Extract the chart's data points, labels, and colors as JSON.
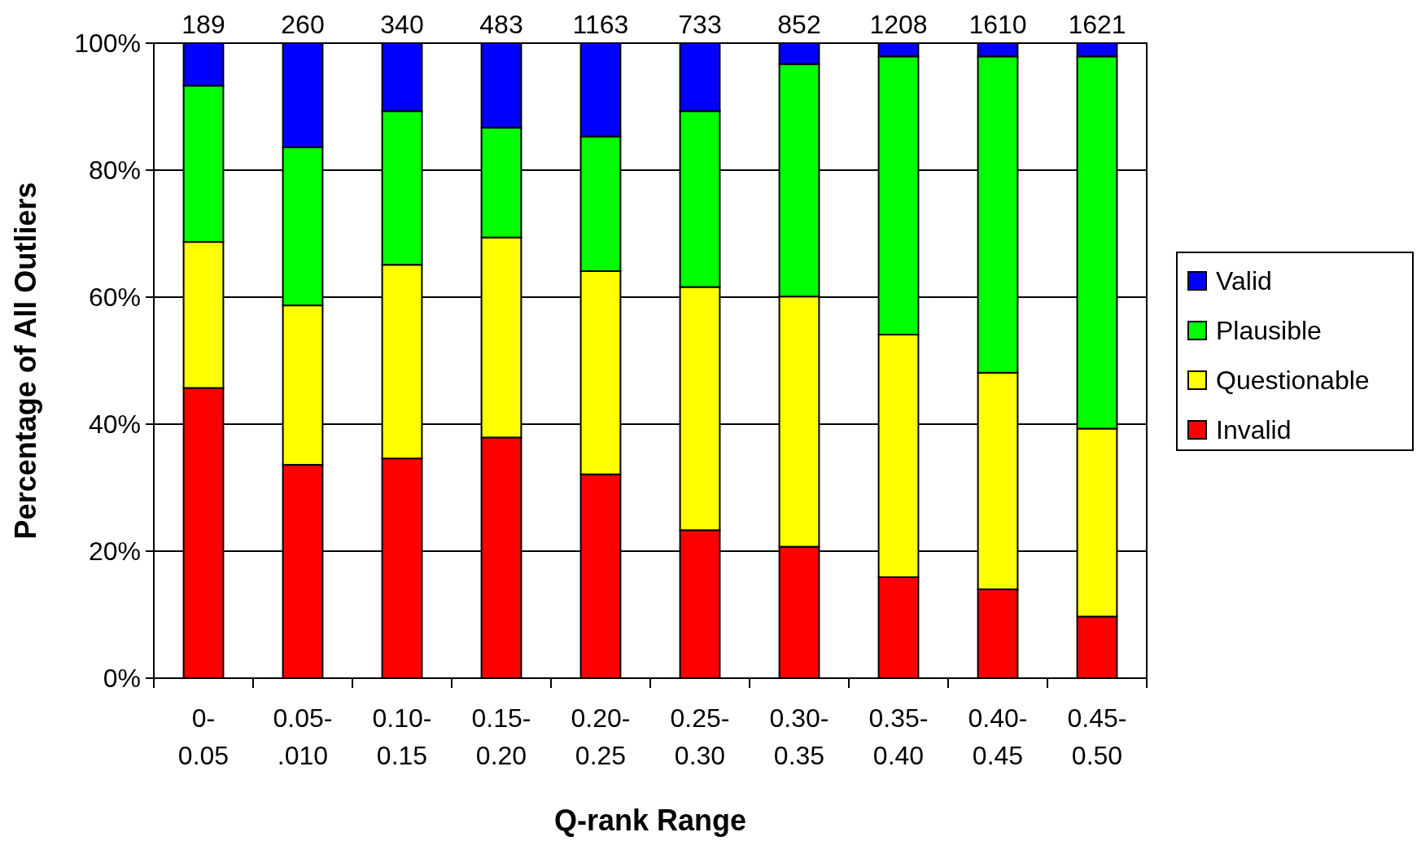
{
  "chart_data": {
    "type": "bar",
    "stacked": true,
    "xlabel": "Q-rank Range",
    "ylabel": "Percentage of All Outliers",
    "categories": [
      "0-0.05",
      "0.05-.010",
      "0.10-0.15",
      "0.15-0.20",
      "0.20-0.25",
      "0.25-0.30",
      "0.30-0.35",
      "0.35-0.40",
      "0.40-0.45",
      "0.45-0.50"
    ],
    "series": [
      {
        "name": "Invalid",
        "color": "#ff0000",
        "values": [
          45.7,
          33.6,
          34.6,
          37.9,
          32.1,
          23.3,
          20.7,
          15.9,
          14.0,
          9.7
        ]
      },
      {
        "name": "Questionable",
        "color": "#ffff00",
        "values": [
          23.0,
          25.1,
          30.5,
          31.5,
          32.0,
          38.3,
          39.4,
          38.2,
          34.1,
          29.6
        ]
      },
      {
        "name": "Plausible",
        "color": "#00ff00",
        "values": [
          24.6,
          24.9,
          24.2,
          17.3,
          21.2,
          27.7,
          36.6,
          43.8,
          49.8,
          58.6
        ]
      },
      {
        "name": "Valid",
        "color": "#0000ff",
        "values": [
          6.7,
          16.4,
          10.7,
          13.3,
          14.7,
          10.7,
          3.3,
          2.1,
          2.1,
          2.1
        ]
      }
    ],
    "annotations": [
      "189",
      "260",
      "340",
      "483",
      "1163",
      "733",
      "852",
      "1208",
      "1610",
      "1621"
    ],
    "ylim": [
      0,
      100
    ],
    "yticks": [
      {
        "value": 0,
        "label": "0%"
      },
      {
        "value": 20,
        "label": "20%"
      },
      {
        "value": 40,
        "label": "40%"
      },
      {
        "value": 60,
        "label": "60%"
      },
      {
        "value": 80,
        "label": "80%"
      },
      {
        "value": 100,
        "label": "100%"
      }
    ],
    "grid": "y",
    "legend": "right"
  }
}
